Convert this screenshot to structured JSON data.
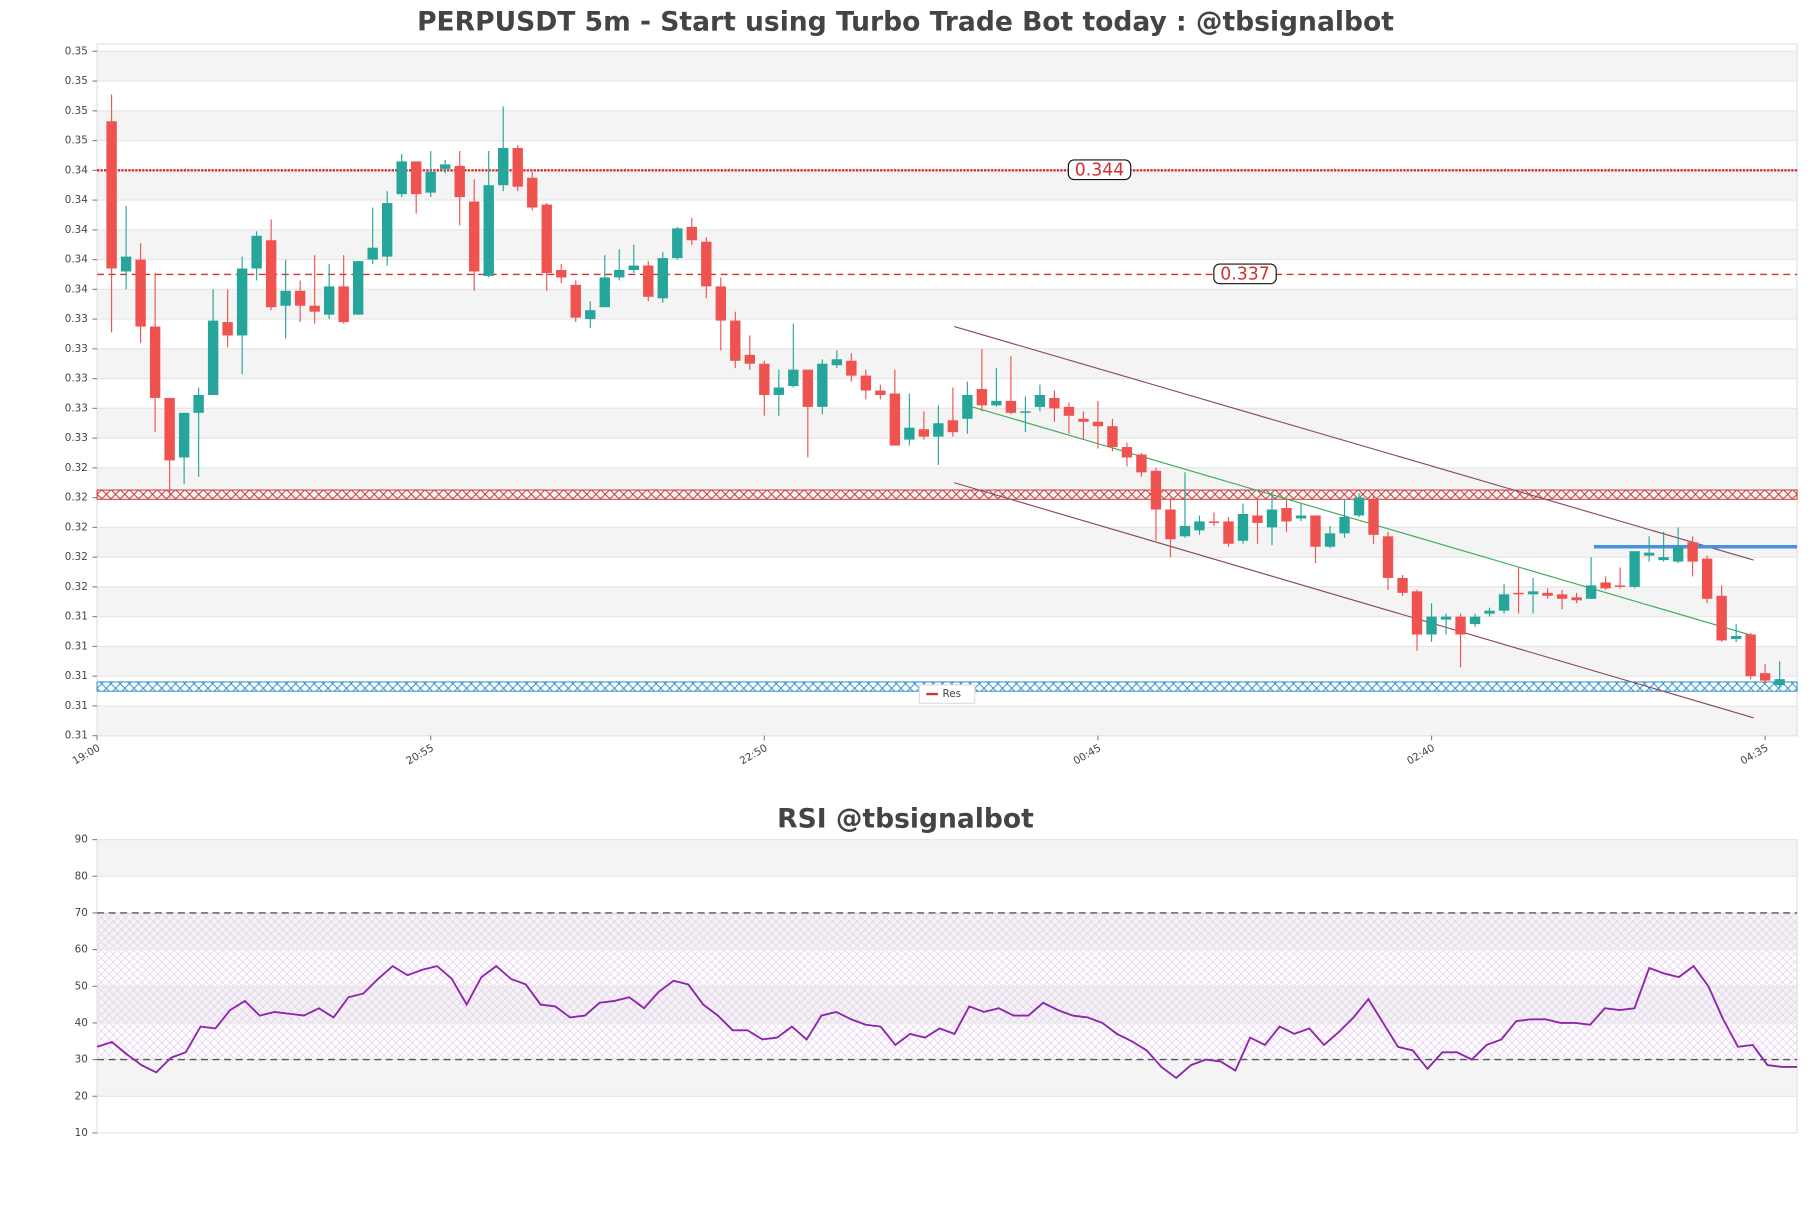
{
  "chart_data": [
    {
      "type": "candlestick",
      "title": "PERPUSDT 5m - Start using Turbo Trade Bot today : @tbsignalbot",
      "x": [
        1,
        2,
        3,
        4,
        5,
        6,
        7,
        8,
        9,
        10,
        11,
        12,
        13,
        14,
        15,
        16,
        17,
        18,
        19,
        20,
        21,
        22,
        23,
        24,
        25,
        26,
        27,
        28,
        29,
        30,
        31,
        32,
        33,
        34,
        35,
        36,
        37,
        38,
        39,
        40,
        41,
        42,
        43,
        44,
        45,
        46,
        47,
        48,
        49,
        50,
        51,
        52,
        53,
        54,
        55,
        56,
        57,
        58,
        59,
        60,
        61,
        62,
        63,
        64,
        65,
        66,
        67,
        68,
        69,
        70,
        71,
        72,
        73,
        74,
        75,
        76,
        77,
        78,
        79,
        80,
        81,
        82,
        83,
        84,
        85,
        86,
        87,
        88,
        89,
        90,
        91,
        92,
        93,
        94,
        95,
        96,
        97,
        98,
        99,
        100,
        101,
        102,
        103,
        104,
        105,
        106,
        107,
        108,
        109,
        110,
        111,
        112,
        113,
        114,
        115,
        116
      ],
      "open": [
        0.3473,
        0.3372,
        0.338,
        0.3335,
        0.3287,
        0.3247,
        0.3277,
        0.3289,
        0.3338,
        0.3329,
        0.3374,
        0.3393,
        0.3349,
        0.3359,
        0.3349,
        0.3343,
        0.3362,
        0.3343,
        0.338,
        0.3382,
        0.3424,
        0.3446,
        0.3425,
        0.3441,
        0.3443,
        0.3419,
        0.3369,
        0.343,
        0.3455,
        0.3435,
        0.3417,
        0.3373,
        0.3363,
        0.334,
        0.3348,
        0.3368,
        0.3373,
        0.3376,
        0.3354,
        0.3381,
        0.3402,
        0.3392,
        0.3362,
        0.3339,
        0.3316,
        0.331,
        0.3289,
        0.3295,
        0.3306,
        0.3281,
        0.3309,
        0.3312,
        0.3302,
        0.3292,
        0.329,
        0.3259,
        0.3266,
        0.3261,
        0.3272,
        0.3273,
        0.3293,
        0.3282,
        0.3285,
        0.3277,
        0.3281,
        0.3287,
        0.3281,
        0.3273,
        0.3271,
        0.3268,
        0.3254,
        0.3249,
        0.3238,
        0.3212,
        0.3194,
        0.3198,
        0.3204,
        0.3204,
        0.3191,
        0.3208,
        0.32,
        0.3213,
        0.3206,
        0.3208,
        0.3187,
        0.3196,
        0.3208,
        0.3219,
        0.3194,
        0.3166,
        0.3157,
        0.3128,
        0.3138,
        0.314,
        0.3135,
        0.3142,
        0.3144,
        0.3156,
        0.3155,
        0.3156,
        0.3155,
        0.3153,
        0.3152,
        0.3163,
        0.3161,
        0.316,
        0.3181,
        0.3178,
        0.3177,
        0.319,
        0.3179,
        0.3154,
        0.3125,
        0.3128,
        0.3102,
        0.3094
      ],
      "high": [
        0.3491,
        0.3416,
        0.3391,
        0.3371,
        0.3287,
        0.3277,
        0.3294,
        0.336,
        0.336,
        0.3382,
        0.3399,
        0.3407,
        0.338,
        0.3366,
        0.3383,
        0.3377,
        0.3383,
        0.3379,
        0.3415,
        0.3426,
        0.3451,
        0.3446,
        0.3453,
        0.3447,
        0.3453,
        0.3434,
        0.3453,
        0.3483,
        0.3457,
        0.3439,
        0.3418,
        0.3377,
        0.3366,
        0.3352,
        0.3383,
        0.3387,
        0.339,
        0.3379,
        0.3385,
        0.3402,
        0.3408,
        0.3395,
        0.3368,
        0.3345,
        0.3329,
        0.3312,
        0.3306,
        0.3337,
        0.3306,
        0.3313,
        0.3319,
        0.3317,
        0.3306,
        0.3296,
        0.3306,
        0.329,
        0.3278,
        0.3282,
        0.3294,
        0.3298,
        0.332,
        0.3307,
        0.3315,
        0.3288,
        0.3296,
        0.3292,
        0.3284,
        0.3278,
        0.3285,
        0.3273,
        0.3257,
        0.325,
        0.324,
        0.322,
        0.3237,
        0.3208,
        0.321,
        0.3207,
        0.3216,
        0.322,
        0.3223,
        0.3219,
        0.3216,
        0.3208,
        0.3201,
        0.3219,
        0.3223,
        0.3222,
        0.3197,
        0.3168,
        0.3158,
        0.3149,
        0.3142,
        0.3142,
        0.3142,
        0.3146,
        0.3162,
        0.3173,
        0.3166,
        0.3159,
        0.3158,
        0.3156,
        0.318,
        0.3167,
        0.3173,
        0.3184,
        0.3194,
        0.3197,
        0.32,
        0.3194,
        0.3181,
        0.3161,
        0.3135,
        0.3129,
        0.3108,
        0.311
      ],
      "low": [
        0.3331,
        0.336,
        0.3324,
        0.3264,
        0.322,
        0.3229,
        0.3234,
        0.3289,
        0.3321,
        0.3303,
        0.3366,
        0.3346,
        0.3327,
        0.3338,
        0.3337,
        0.334,
        0.3337,
        0.3343,
        0.3377,
        0.3376,
        0.3422,
        0.3411,
        0.3422,
        0.3438,
        0.3403,
        0.3359,
        0.3368,
        0.3426,
        0.3426,
        0.3413,
        0.3359,
        0.3364,
        0.3338,
        0.3334,
        0.3348,
        0.3366,
        0.3371,
        0.3352,
        0.3351,
        0.338,
        0.339,
        0.3354,
        0.3319,
        0.3307,
        0.3306,
        0.3275,
        0.3275,
        0.3294,
        0.3247,
        0.3276,
        0.3307,
        0.3298,
        0.3286,
        0.3286,
        0.3255,
        0.3255,
        0.3259,
        0.3242,
        0.3261,
        0.3263,
        0.3278,
        0.3281,
        0.3276,
        0.3264,
        0.3278,
        0.3271,
        0.3263,
        0.3259,
        0.3253,
        0.3251,
        0.3241,
        0.3234,
        0.3191,
        0.318,
        0.3193,
        0.3195,
        0.3201,
        0.3187,
        0.3189,
        0.3189,
        0.3188,
        0.3197,
        0.3204,
        0.3176,
        0.3186,
        0.3193,
        0.3207,
        0.3189,
        0.3158,
        0.3154,
        0.3117,
        0.3123,
        0.3128,
        0.3106,
        0.3133,
        0.314,
        0.3142,
        0.3142,
        0.3142,
        0.3152,
        0.3145,
        0.3149,
        0.3152,
        0.3158,
        0.3159,
        0.3159,
        0.3177,
        0.3177,
        0.3176,
        0.3167,
        0.3149,
        0.3123,
        0.3123,
        0.3098,
        0.3095,
        0.3092
      ],
      "close": [
        0.3374,
        0.3382,
        0.3335,
        0.3287,
        0.3245,
        0.3277,
        0.3289,
        0.3339,
        0.3329,
        0.3374,
        0.3396,
        0.3348,
        0.3359,
        0.3349,
        0.3345,
        0.3362,
        0.3338,
        0.3379,
        0.3388,
        0.3418,
        0.3446,
        0.3424,
        0.3439,
        0.3444,
        0.3422,
        0.3372,
        0.343,
        0.3455,
        0.3429,
        0.3415,
        0.3371,
        0.3368,
        0.3341,
        0.3346,
        0.3368,
        0.3373,
        0.3376,
        0.3355,
        0.3381,
        0.3401,
        0.3393,
        0.3362,
        0.3339,
        0.3312,
        0.331,
        0.3289,
        0.3294,
        0.3306,
        0.3281,
        0.331,
        0.3313,
        0.3302,
        0.3292,
        0.3289,
        0.3255,
        0.3267,
        0.3261,
        0.327,
        0.3264,
        0.3289,
        0.3282,
        0.3285,
        0.3277,
        0.3278,
        0.3289,
        0.328,
        0.3275,
        0.3271,
        0.3268,
        0.3254,
        0.3247,
        0.3237,
        0.3212,
        0.3192,
        0.3201,
        0.3204,
        0.3203,
        0.3189,
        0.3209,
        0.3203,
        0.3212,
        0.3204,
        0.3208,
        0.3187,
        0.3196,
        0.3207,
        0.322,
        0.3195,
        0.3166,
        0.3156,
        0.3128,
        0.314,
        0.314,
        0.3128,
        0.314,
        0.3144,
        0.3155,
        0.3155,
        0.3157,
        0.3154,
        0.3152,
        0.3151,
        0.3161,
        0.3159,
        0.316,
        0.3184,
        0.3183,
        0.318,
        0.3187,
        0.3177,
        0.3152,
        0.3124,
        0.3127,
        0.31,
        0.3097,
        0.3098
      ],
      "up_color": "#26a69a",
      "down_color": "#ef5350",
      "xlim": [
        0,
        117.2
      ],
      "xticks": [
        {
          "value": 0,
          "label": "19:00"
        },
        {
          "value": 23,
          "label": "20:55"
        },
        {
          "value": 46,
          "label": "22:50"
        },
        {
          "value": 69,
          "label": "00:45"
        },
        {
          "value": 92,
          "label": "02:40"
        },
        {
          "value": 115,
          "label": "04:35"
        }
      ],
      "ylim": [
        0.306,
        0.3525
      ],
      "yticks": [
        {
          "value": 0.306,
          "label": "0.31"
        },
        {
          "value": 0.308,
          "label": "0.31"
        },
        {
          "value": 0.31,
          "label": "0.31"
        },
        {
          "value": 0.312,
          "label": "0.31"
        },
        {
          "value": 0.314,
          "label": "0.31"
        },
        {
          "value": 0.316,
          "label": "0.32"
        },
        {
          "value": 0.318,
          "label": "0.32"
        },
        {
          "value": 0.32,
          "label": "0.32"
        },
        {
          "value": 0.322,
          "label": "0.32"
        },
        {
          "value": 0.324,
          "label": "0.32"
        },
        {
          "value": 0.326,
          "label": "0.33"
        },
        {
          "value": 0.328,
          "label": "0.33"
        },
        {
          "value": 0.33,
          "label": "0.33"
        },
        {
          "value": 0.332,
          "label": "0.33"
        },
        {
          "value": 0.334,
          "label": "0.33"
        },
        {
          "value": 0.336,
          "label": "0.34"
        },
        {
          "value": 0.338,
          "label": "0.34"
        },
        {
          "value": 0.34,
          "label": "0.34"
        },
        {
          "value": 0.342,
          "label": "0.34"
        },
        {
          "value": 0.344,
          "label": "0.34"
        },
        {
          "value": 0.346,
          "label": "0.35"
        },
        {
          "value": 0.348,
          "label": "0.35"
        },
        {
          "value": 0.35,
          "label": "0.35"
        },
        {
          "value": 0.352,
          "label": "0.35"
        }
      ],
      "grid": true,
      "levels": {
        "name": "Res",
        "values": [
          0.344,
          0.337
        ],
        "styles": [
          "dotted",
          "dashed"
        ],
        "color": "#d32f2f"
      },
      "zones": [
        {
          "value": 0.3222,
          "color": "#c62828"
        },
        {
          "value": 0.3093,
          "color": "#1e88c8"
        }
      ],
      "trendlines": [
        {
          "x": [
            59.1,
            114.2
          ],
          "y": [
            0.3335,
            0.3178
          ],
          "color": "#8b4a5a"
        },
        {
          "x": [
            59.1,
            114.2
          ],
          "y": [
            0.323,
            0.3072
          ],
          "color": "#8b4a5a"
        },
        {
          "x": [
            60.0,
            114.2
          ],
          "y": [
            0.3282,
            0.3127
          ],
          "color": "#3daa5a"
        },
        {
          "x": [
            103.2,
            117.2
          ],
          "y": [
            0.3187,
            0.3187
          ],
          "color": "#4a90e2"
        }
      ],
      "legend": "lower center"
    },
    {
      "type": "line",
      "title": "RSI @tbsignalbot",
      "values": [
        33.5,
        34.8,
        31.5,
        28.5,
        26.5,
        30.5,
        32,
        39,
        38.5,
        43.5,
        46,
        42,
        43,
        42.5,
        42,
        44,
        41.5,
        47,
        48,
        52,
        55.5,
        53,
        54.5,
        55.5,
        52,
        45,
        52.5,
        55.5,
        52,
        50.5,
        45,
        44.5,
        41.5,
        42,
        45.5,
        46,
        47,
        44,
        48.5,
        51.5,
        50.5,
        45,
        42,
        38,
        38,
        35.5,
        36,
        39,
        35.5,
        42,
        43,
        41,
        39.5,
        39,
        34,
        37,
        36,
        38.5,
        37,
        44.5,
        43,
        44,
        42,
        42,
        45.5,
        43.5,
        42,
        41.5,
        40,
        37,
        35,
        32.5,
        28,
        25,
        28.5,
        30,
        29.5,
        27,
        36,
        34,
        39,
        37,
        38.5,
        34,
        37.5,
        41.5,
        46.5,
        40,
        33.5,
        32.5,
        27.5,
        32,
        32,
        30,
        34,
        35.5,
        40.5,
        41,
        41,
        40,
        40,
        39.5,
        44,
        43.5,
        44,
        55,
        53.5,
        52.5,
        55.5,
        50,
        41,
        33.5,
        34,
        28.5,
        28,
        28
      ],
      "color": "#8e24aa",
      "ylim": [
        10,
        90
      ],
      "yticks": [
        10,
        20,
        30,
        40,
        50,
        60,
        70,
        80,
        90
      ],
      "grid": true,
      "hlines": [
        70,
        30
      ],
      "band": [
        30,
        70
      ]
    }
  ]
}
